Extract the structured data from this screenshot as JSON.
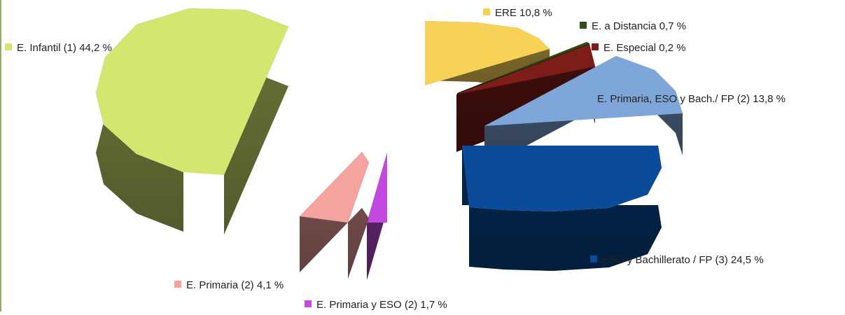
{
  "chart_data": {
    "type": "pie",
    "title": "",
    "legend_placement": "around",
    "slices": [
      {
        "name": "E. Infantil (1)",
        "value": 44.2,
        "label": "E. Infantil (1) 44,2 %",
        "color": "#d4e66f"
      },
      {
        "name": "ERE",
        "value": 10.8,
        "label": "ERE 10,8 %",
        "color": "#f7d256"
      },
      {
        "name": "E. a Distancia",
        "value": 0.7,
        "label": "E. a Distancia  0,7 %",
        "color": "#344d12"
      },
      {
        "name": "E. Especial",
        "value": 0.2,
        "label": "E. Especial 0,2 %",
        "color": "#7d1d1a"
      },
      {
        "name": "E. Primaria, ESO y Bach./ FP (2)",
        "value": 13.8,
        "label": "E. Primaria, ESO y Bach./ FP (2) 13,8 %",
        "color": "#7fa6d9"
      },
      {
        "name": "ESO y Bachillerato / FP (3)",
        "value": 24.5,
        "label": "ESO y Bachillerato / FP (3) 24,5 %",
        "color": "#0a4b9a"
      },
      {
        "name": "E. Primaria y ESO (2)",
        "value": 1.7,
        "label": "E. Primaria y ESO (2) 1,7 %",
        "color": "#c149dd"
      },
      {
        "name": "E. Primaria (2)",
        "value": 4.1,
        "label": "E. Primaria (2) 4,1 %",
        "color": "#f5a3a1"
      }
    ]
  }
}
